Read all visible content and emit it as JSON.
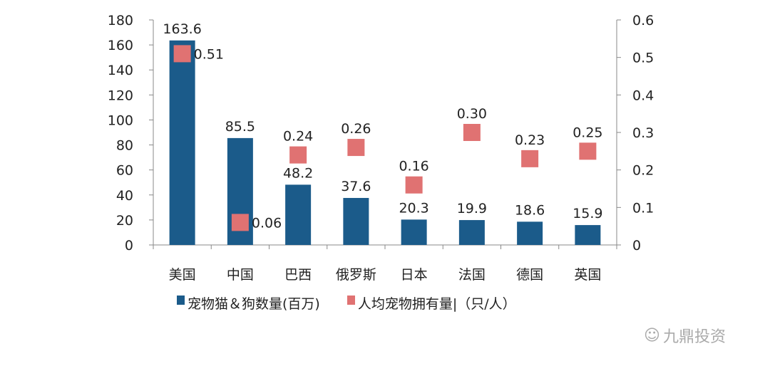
{
  "chart_data": {
    "type": "bar+scatter",
    "categories": [
      "美国",
      "中国",
      "巴西",
      "俄罗斯",
      "日本",
      "法国",
      "德国",
      "英国"
    ],
    "series": [
      {
        "name": "宠物猫＆狗数量(百万)",
        "type": "bar",
        "axis": "left",
        "color": "#1b5b8a",
        "values": [
          163.6,
          85.5,
          48.2,
          37.6,
          20.3,
          19.9,
          18.6,
          15.9
        ],
        "labels": [
          "163.6",
          "85.5",
          "48.2",
          "37.6",
          "20.3",
          "19.9",
          "18.6",
          "15.9"
        ]
      },
      {
        "name": "人均宠物拥有量|（只/人）",
        "type": "scatter",
        "axis": "right",
        "color": "#e07272",
        "values": [
          0.51,
          0.06,
          0.24,
          0.26,
          0.16,
          0.3,
          0.23,
          0.25
        ],
        "labels": [
          "0.51",
          "0.06",
          "0.24",
          "0.26",
          "0.16",
          "0.30",
          "0.23",
          "0.25"
        ]
      }
    ],
    "left_axis": {
      "ylim": [
        0,
        180
      ],
      "ticks": [
        "0",
        "20",
        "40",
        "60",
        "80",
        "100",
        "120",
        "140",
        "160",
        "180"
      ]
    },
    "right_axis": {
      "ylim": [
        0,
        0.6
      ],
      "ticks": [
        "0",
        "0.1",
        "0.2",
        "0.3",
        "0.4",
        "0.5",
        "0.6"
      ]
    },
    "grid": false,
    "legend": "bottom"
  },
  "watermark": "九鼎投资"
}
